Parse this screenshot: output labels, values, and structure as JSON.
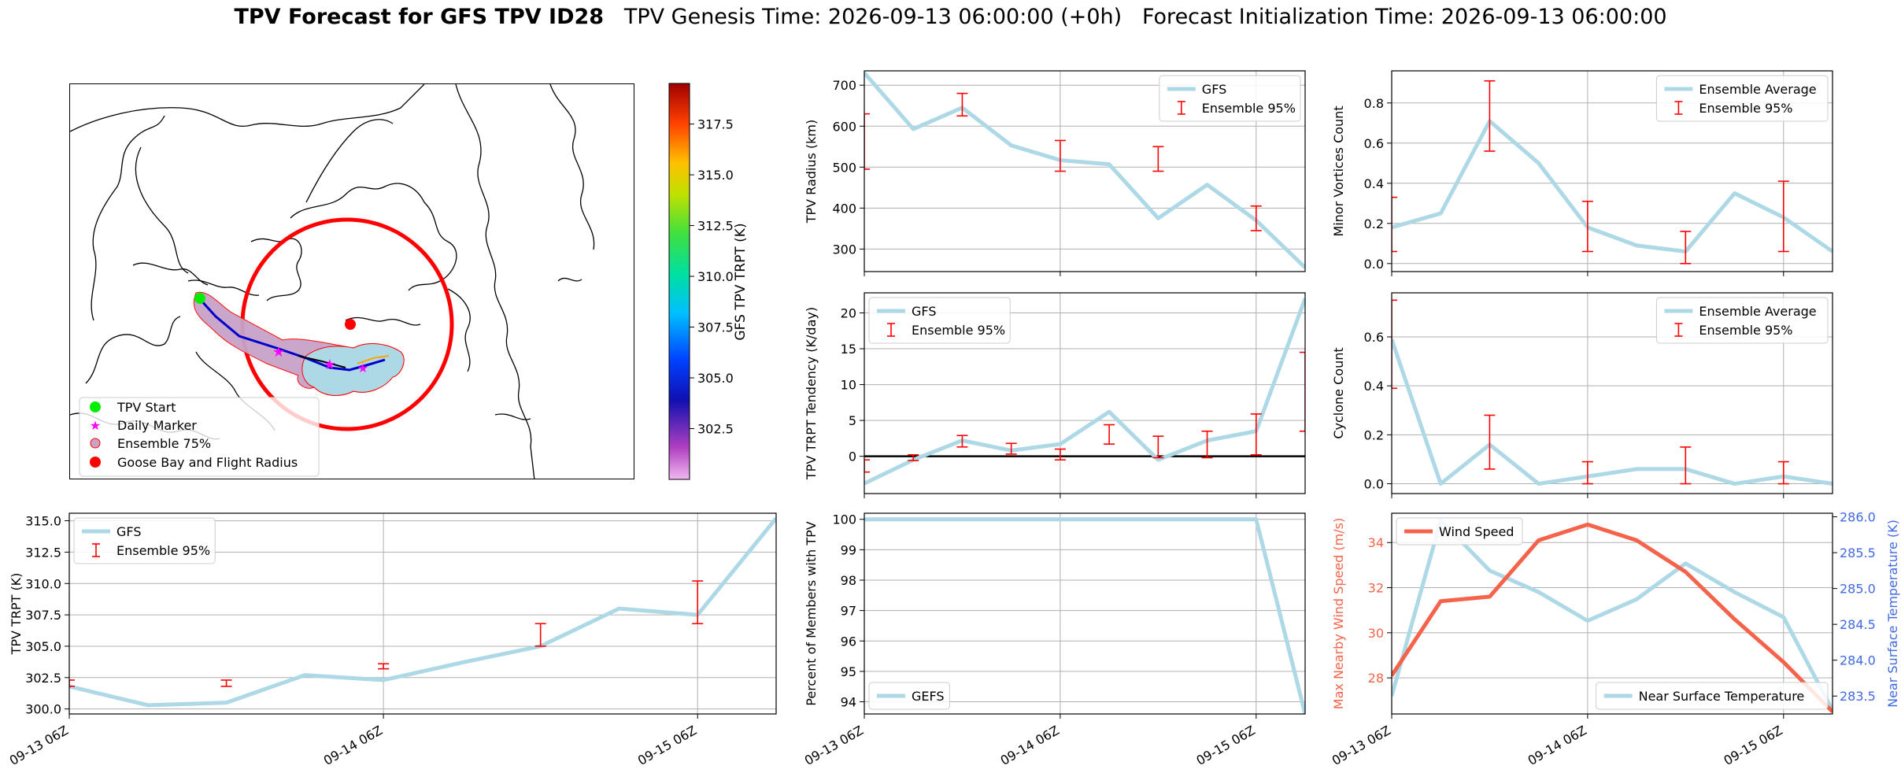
{
  "title": {
    "bold": "TPV Forecast for GFS TPV ID28",
    "genesis": "TPV Genesis Time: 2026-09-13 06:00:00 (+0h)",
    "init": "Forecast Initialization Time: 2026-09-13 06:00:00"
  },
  "map": {
    "legend": [
      "TPV Start",
      "Daily Marker",
      "Ensemble 75%",
      "Goose Bay and Flight Radius"
    ],
    "colorbar": {
      "label": "GFS TPV TRPT (K)",
      "ticks": [
        "302.5",
        "305.0",
        "307.5",
        "310.0",
        "312.5",
        "315.0",
        "317.5"
      ],
      "range": [
        300.0,
        319.5
      ]
    },
    "colors": {
      "start": "#00ee00",
      "daily": "#ff00ff",
      "ensemble_fill": "#add8e6",
      "ensemble_edge": "#ff0000",
      "goose_bay": "#ff0000"
    }
  },
  "chart_data": [
    {
      "id": "radius",
      "type": "line",
      "x": [
        0,
        0.25,
        0.5,
        0.75,
        1,
        1.25,
        1.5,
        1.75,
        2,
        2.25
      ],
      "series": [
        {
          "name": "GFS",
          "values": [
            730,
            593,
            645,
            553,
            517,
            507,
            375,
            457,
            370,
            255
          ],
          "color": "#add8e6"
        }
      ],
      "errorbars": {
        "name": "Ensemble 95%",
        "x": [
          0,
          0.5,
          1,
          1.5,
          2
        ],
        "low": [
          495,
          625,
          490,
          490,
          345
        ],
        "high": [
          630,
          680,
          565,
          550,
          405
        ],
        "color": "#ff0000"
      },
      "ylabel": "TPV Radius (km)",
      "ylim": [
        245,
        735
      ],
      "yticks": [
        300,
        400,
        500,
        600,
        700
      ],
      "ytick_labels": [
        "300",
        "400",
        "500",
        "600",
        "700"
      ],
      "xticks": [
        0,
        1,
        2
      ],
      "xtick_labels": [
        "",
        "",
        ""
      ],
      "legend": "upper right"
    },
    {
      "id": "minor",
      "type": "line",
      "x": [
        0,
        0.25,
        0.5,
        0.75,
        1,
        1.25,
        1.5,
        1.75,
        2,
        2.25
      ],
      "series": [
        {
          "name": "Ensemble Average",
          "values": [
            0.18,
            0.25,
            0.71,
            0.5,
            0.18,
            0.09,
            0.06,
            0.35,
            0.23,
            0.06
          ],
          "color": "#add8e6"
        }
      ],
      "errorbars": {
        "name": "Ensemble 95%",
        "x": [
          0,
          0.5,
          1,
          1.5,
          2
        ],
        "low": [
          0.06,
          0.56,
          0.06,
          0.0,
          0.06
        ],
        "high": [
          0.33,
          0.91,
          0.31,
          0.16,
          0.41
        ],
        "color": "#ff0000"
      },
      "ylabel": "Minor Vortices Count",
      "ylim": [
        -0.04,
        0.96
      ],
      "yticks": [
        0,
        0.2,
        0.4,
        0.6,
        0.8
      ],
      "ytick_labels": [
        "0.0",
        "0.2",
        "0.4",
        "0.6",
        "0.8"
      ],
      "xticks": [
        0,
        1,
        2
      ],
      "xtick_labels": [
        "",
        "",
        ""
      ],
      "legend": "upper right"
    },
    {
      "id": "tendency",
      "type": "line",
      "x": [
        0,
        0.25,
        0.5,
        0.75,
        1,
        1.25,
        1.5,
        1.75,
        2,
        2.25
      ],
      "series": [
        {
          "name": "GFS",
          "values": [
            -3.8,
            -0.5,
            2.2,
            0.8,
            1.7,
            6.2,
            -0.5,
            2.2,
            3.5,
            22.0
          ],
          "color": "#add8e6"
        }
      ],
      "errorbars": {
        "name": "Ensemble 95%",
        "x": [
          0,
          0.25,
          0.5,
          0.75,
          1,
          1.25,
          1.5,
          1.75,
          2,
          2.25
        ],
        "low": [
          -2.2,
          -0.6,
          1.3,
          0.3,
          -0.5,
          1.7,
          -0.2,
          -0.2,
          0.2,
          3.5
        ],
        "high": [
          -0.5,
          0.2,
          2.9,
          1.8,
          1.0,
          4.4,
          2.8,
          3.5,
          5.9,
          14.5
        ],
        "color": "#ff0000"
      },
      "zeroline": true,
      "ylabel": "TPV TRPT Tendency (K/day)",
      "ylim": [
        -5.2,
        22.8
      ],
      "yticks": [
        0,
        5,
        10,
        15,
        20
      ],
      "ytick_labels": [
        "0",
        "5",
        "10",
        "15",
        "20"
      ],
      "xticks": [
        0,
        1,
        2
      ],
      "xtick_labels": [
        "",
        "",
        ""
      ],
      "legend": "upper left"
    },
    {
      "id": "cyclone",
      "type": "line",
      "x": [
        0,
        0.25,
        0.5,
        0.75,
        1,
        1.25,
        1.5,
        1.75,
        2,
        2.25
      ],
      "series": [
        {
          "name": "Ensemble Average",
          "values": [
            0.59,
            0.0,
            0.16,
            0.0,
            0.03,
            0.06,
            0.06,
            0.0,
            0.03,
            0.0
          ],
          "color": "#add8e6"
        }
      ],
      "errorbars": {
        "name": "Ensemble 95%",
        "x": [
          0,
          0.5,
          1,
          1.5,
          2
        ],
        "low": [
          0.39,
          0.06,
          0.0,
          0.0,
          0.0
        ],
        "high": [
          0.75,
          0.28,
          0.09,
          0.15,
          0.09
        ],
        "color": "#ff0000"
      },
      "ylabel": "Cyclone Count",
      "ylim": [
        -0.04,
        0.78
      ],
      "yticks": [
        0,
        0.2,
        0.4,
        0.6
      ],
      "ytick_labels": [
        "0.0",
        "0.2",
        "0.4",
        "0.6"
      ],
      "xticks": [
        0,
        1,
        2
      ],
      "xtick_labels": [
        "",
        "",
        ""
      ],
      "legend": "upper right"
    },
    {
      "id": "trpt",
      "type": "line",
      "x": [
        0,
        0.25,
        0.5,
        0.75,
        1,
        1.25,
        1.5,
        1.75,
        2,
        2.25
      ],
      "series": [
        {
          "name": "GFS",
          "values": [
            301.8,
            300.3,
            300.5,
            302.7,
            302.3,
            303.7,
            305.0,
            308.0,
            307.5,
            315.2
          ],
          "color": "#add8e6"
        }
      ],
      "errorbars": {
        "name": "Ensemble 95%",
        "x": [
          0,
          0.5,
          1,
          1.5,
          2
        ],
        "low": [
          301.8,
          301.8,
          303.2,
          305.0,
          306.8
        ],
        "high": [
          302.3,
          302.3,
          303.6,
          306.8,
          310.2
        ],
        "color": "#ff0000"
      },
      "ylabel": "TPV TRPT (K)",
      "ylim": [
        299.6,
        315.6
      ],
      "yticks": [
        300,
        302.5,
        305,
        307.5,
        310,
        312.5,
        315
      ],
      "ytick_labels": [
        "300.0",
        "302.5",
        "305.0",
        "307.5",
        "310.0",
        "312.5",
        "315.0"
      ],
      "xticks": [
        0,
        1,
        2
      ],
      "xtick_labels": [
        "09-13 06Z",
        "09-14 06Z",
        "09-15 06Z"
      ],
      "legend": "upper left"
    },
    {
      "id": "percent",
      "type": "line",
      "x": [
        0,
        0.25,
        0.5,
        0.75,
        1,
        1.25,
        1.5,
        1.75,
        2,
        2.25
      ],
      "series": [
        {
          "name": "GEFS",
          "values": [
            100,
            100,
            100,
            100,
            100,
            100,
            100,
            100,
            100,
            93.6
          ],
          "color": "#add8e6"
        }
      ],
      "ylabel": "Percent of Members with TPV",
      "ylim": [
        93.6,
        100.2
      ],
      "yticks": [
        94,
        95,
        96,
        97,
        98,
        99,
        100
      ],
      "ytick_labels": [
        "94",
        "95",
        "96",
        "97",
        "98",
        "99",
        "100"
      ],
      "xticks": [
        0,
        1,
        2
      ],
      "xtick_labels": [
        "09-13 06Z",
        "09-14 06Z",
        "09-15 06Z"
      ],
      "legend": "lower left"
    },
    {
      "id": "wind",
      "type": "line",
      "x": [
        0,
        0.25,
        0.5,
        0.75,
        1,
        1.25,
        1.5,
        1.75,
        2,
        2.25
      ],
      "series": [
        {
          "name": "Wind Speed",
          "values": [
            28.1,
            31.4,
            31.6,
            34.1,
            34.8,
            34.1,
            32.7,
            30.6,
            28.7,
            26.5
          ],
          "color": "#f4634a"
        }
      ],
      "ylabel": "Max Nearby Wind Speed (m/s)",
      "ylim": [
        26.4,
        35.3
      ],
      "yticks": [
        28,
        30,
        32,
        34
      ],
      "ytick_labels": [
        "28",
        "30",
        "32",
        "34"
      ],
      "secondary": {
        "series": [
          {
            "name": "Near Surface Temperature",
            "values": [
              283.5,
              285.95,
              285.25,
              284.95,
              284.55,
              284.85,
              285.35,
              284.95,
              284.6,
              283.3
            ],
            "color": "#add8e6"
          }
        ],
        "ylabel": "Near Surface Temperature (K)",
        "ylim": [
          283.25,
          286.05
        ],
        "yticks": [
          283.5,
          284,
          284.5,
          285,
          285.5,
          286
        ],
        "ytick_labels": [
          "283.5",
          "284.0",
          "284.5",
          "285.0",
          "285.5",
          "286.0"
        ],
        "color": "#4169e1"
      },
      "xticks": [
        0,
        1,
        2
      ],
      "xtick_labels": [
        "09-13 06Z",
        "09-14 06Z",
        "09-15 06Z"
      ]
    }
  ]
}
